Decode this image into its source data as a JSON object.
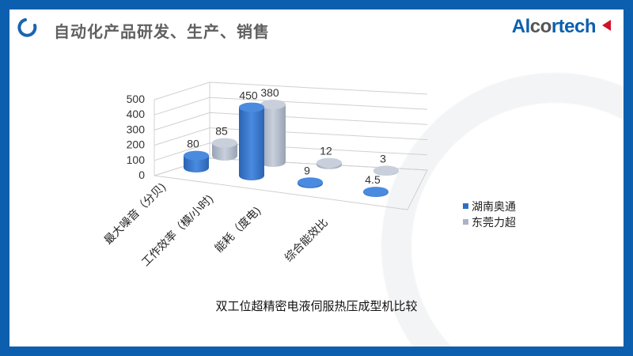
{
  "header": {
    "title": "自动化产品研发、生产、销售",
    "logo_text": "Alcortech",
    "logo_part1": "Al",
    "logo_part2": "co",
    "logo_part3": "rtech"
  },
  "chart_data": {
    "type": "bar",
    "subtype": "3d-cylinder",
    "title": "双工位超精密电液伺服热压成型机比较",
    "categories": [
      "最大噪音（分贝)",
      "工作效率（模/小时)",
      "能耗（度电)",
      "综合能效比"
    ],
    "series": [
      {
        "name": "湖南奥通",
        "values": [
          80,
          450,
          9,
          4.5
        ],
        "color": "#2f6fc4"
      },
      {
        "name": "东莞力超",
        "values": [
          85,
          380,
          12,
          3
        ],
        "color": "#aab4c4"
      }
    ],
    "data_labels": [
      [
        "80",
        "450",
        "9",
        "4.5"
      ],
      [
        "85",
        "380",
        "12",
        "3"
      ]
    ],
    "yticks": [
      "0",
      "100",
      "200",
      "300",
      "400",
      "500"
    ],
    "ylim": [
      0,
      500
    ],
    "grid": true,
    "legend": "right"
  }
}
